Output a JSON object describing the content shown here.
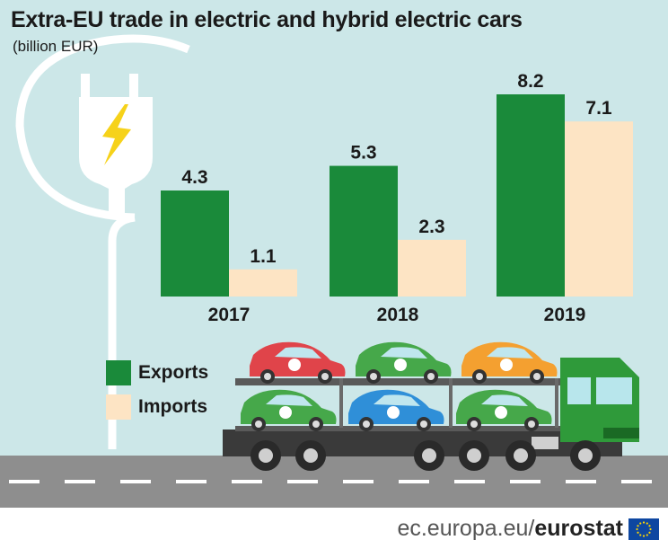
{
  "title": "Extra-EU trade in electric and hybrid electric cars",
  "subtitle": "(billion EUR)",
  "footer": {
    "site": "ec.europa.eu/",
    "brand": "eurostat"
  },
  "colors": {
    "exports": "#1a8a3a",
    "imports": "#fde4c4",
    "sky": "#cce7e8",
    "road": "#8e8e8e"
  },
  "chart_data": {
    "type": "bar",
    "title": "Extra-EU trade in electric and hybrid electric cars",
    "subtitle": "(billion EUR)",
    "categories": [
      "2017",
      "2018",
      "2019"
    ],
    "series": [
      {
        "name": "Exports",
        "values": [
          4.3,
          5.3,
          8.2
        ],
        "color": "#1a8a3a"
      },
      {
        "name": "Imports",
        "values": [
          1.1,
          2.3,
          7.1
        ],
        "color": "#fde4c4"
      }
    ],
    "xlabel": "",
    "ylabel": "",
    "grid": false,
    "legend": "bottom-left",
    "ylim": [
      0,
      8.2
    ]
  },
  "illustration": {
    "icons": [
      "power-plug-icon",
      "lightning-bolt-icon",
      "car-transporter-truck-icon",
      "car-icon"
    ],
    "car_colors": [
      "#e0444a",
      "#46a84a",
      "#f4a030",
      "#46a84a",
      "#2f8fd8",
      "#46a84a"
    ]
  }
}
